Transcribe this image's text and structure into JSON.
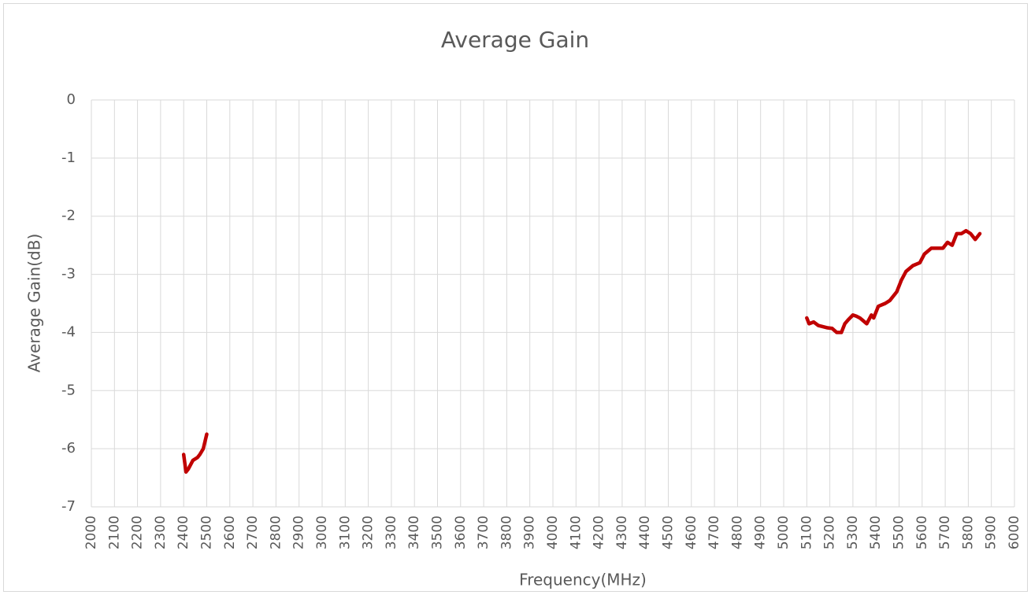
{
  "chart_data": {
    "type": "line",
    "title": "Average Gain",
    "x_label": "Frequency(MHz)",
    "y_label": "Average Gain(dB)",
    "x": [
      2400,
      2410,
      2420,
      2440,
      2460,
      2470,
      2485,
      2500,
      null,
      5100,
      5110,
      5130,
      5150,
      5170,
      5190,
      5210,
      5230,
      5250,
      5265,
      5280,
      5300,
      5315,
      5330,
      5345,
      5360,
      5380,
      5390,
      5410,
      5440,
      5460,
      5490,
      5510,
      5530,
      5560,
      5590,
      5610,
      5640,
      5670,
      5690,
      5710,
      5730,
      5750,
      5770,
      5790,
      5810,
      5830,
      5850
    ],
    "series": [
      {
        "color": "#c00000",
        "values": [
          -6.1,
          -6.4,
          -6.35,
          -6.2,
          -6.15,
          -6.1,
          -6.0,
          -5.75,
          null,
          -3.75,
          -3.85,
          -3.82,
          -3.88,
          -3.9,
          -3.92,
          -3.93,
          -4.0,
          -4.0,
          -3.85,
          -3.78,
          -3.7,
          -3.72,
          -3.75,
          -3.8,
          -3.85,
          -3.7,
          -3.75,
          -3.55,
          -3.5,
          -3.45,
          -3.3,
          -3.1,
          -2.95,
          -2.85,
          -2.8,
          -2.65,
          -2.55,
          -2.55,
          -2.55,
          -2.45,
          -2.5,
          -2.3,
          -2.3,
          -2.25,
          -2.3,
          -2.4,
          -2.3
        ]
      }
    ],
    "xlim": [
      2000,
      6000
    ],
    "xticks": [
      2000,
      2100,
      2200,
      2300,
      2400,
      2500,
      2600,
      2700,
      2800,
      2900,
      3000,
      3100,
      3200,
      3300,
      3400,
      3500,
      3600,
      3700,
      3800,
      3900,
      4000,
      4100,
      4200,
      4300,
      4400,
      4500,
      4600,
      4700,
      4800,
      4900,
      5000,
      5100,
      5200,
      5300,
      5400,
      5500,
      5600,
      5700,
      5800,
      5900,
      6000
    ],
    "ylim": [
      -7,
      0
    ],
    "yticks": [
      0,
      -1,
      -2,
      -3,
      -4,
      -5,
      -6,
      -7
    ],
    "grid": true
  }
}
